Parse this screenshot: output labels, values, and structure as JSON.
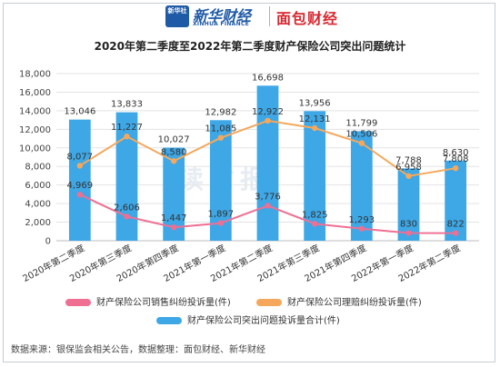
{
  "header": {
    "logo_text": "新华社",
    "xinhua_cn": "新华财经",
    "xinhua_en": "XINHUA FINANCE",
    "mianbao": "面包财经"
  },
  "watermark": "读财报",
  "source_note": "数据来源：银保监会相关公告，数据整理：面包财经、新华财经",
  "colors": {
    "bar": "#3ea7e6",
    "sales_line": "#ef6f93",
    "claims_line": "#f5a85b"
  },
  "chart_data": {
    "type": "bar",
    "title": "2020年第二季度至2022年第二季度财产保险公司突出问题统计",
    "categories": [
      "2020年第二季度",
      "2020年第三季度",
      "2020年第四季度",
      "2021年第一季度",
      "2021年第二季度",
      "2021年第三季度",
      "2021年第四季度",
      "2022年第一季度",
      "2022年第二季度"
    ],
    "ylim": [
      0,
      18000
    ],
    "yticks": [
      0,
      2000,
      4000,
      6000,
      8000,
      10000,
      12000,
      14000,
      16000,
      18000
    ],
    "grid": true,
    "legend_position": "bottom",
    "series": [
      {
        "name": "财产保险公司突出问题投诉量合计(件)",
        "kind": "bar",
        "values": [
          13046,
          13833,
          10027,
          12982,
          16698,
          13956,
          11799,
          7788,
          8630
        ]
      },
      {
        "name": "财产保险公司销售纠纷投诉量(件)",
        "kind": "line",
        "values": [
          4969,
          2606,
          1447,
          1897,
          3776,
          1825,
          1293,
          830,
          822
        ]
      },
      {
        "name": "财产保险公司理赔纠纷投诉量(件)",
        "kind": "line",
        "values": [
          8077,
          11227,
          8580,
          11085,
          12922,
          12131,
          10506,
          6958,
          7808
        ]
      }
    ]
  }
}
